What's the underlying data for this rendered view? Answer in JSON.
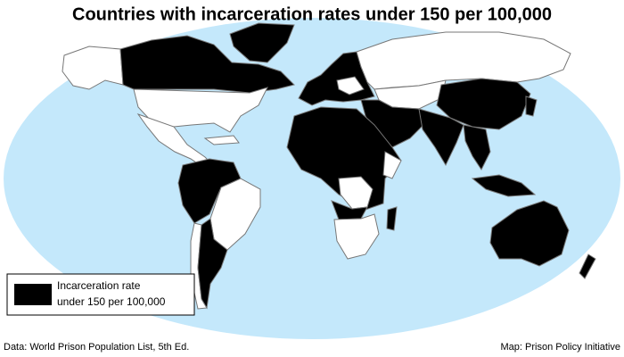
{
  "title": "Countries with incarceration rates under 150 per 100,000",
  "legend": {
    "lines": [
      "Incarceration rate",
      "under 150 per 100,000"
    ]
  },
  "footer": {
    "source": "Data: World Prison Population List, 5th Ed.",
    "credit": "Map: Prison Policy Initiative"
  }
}
